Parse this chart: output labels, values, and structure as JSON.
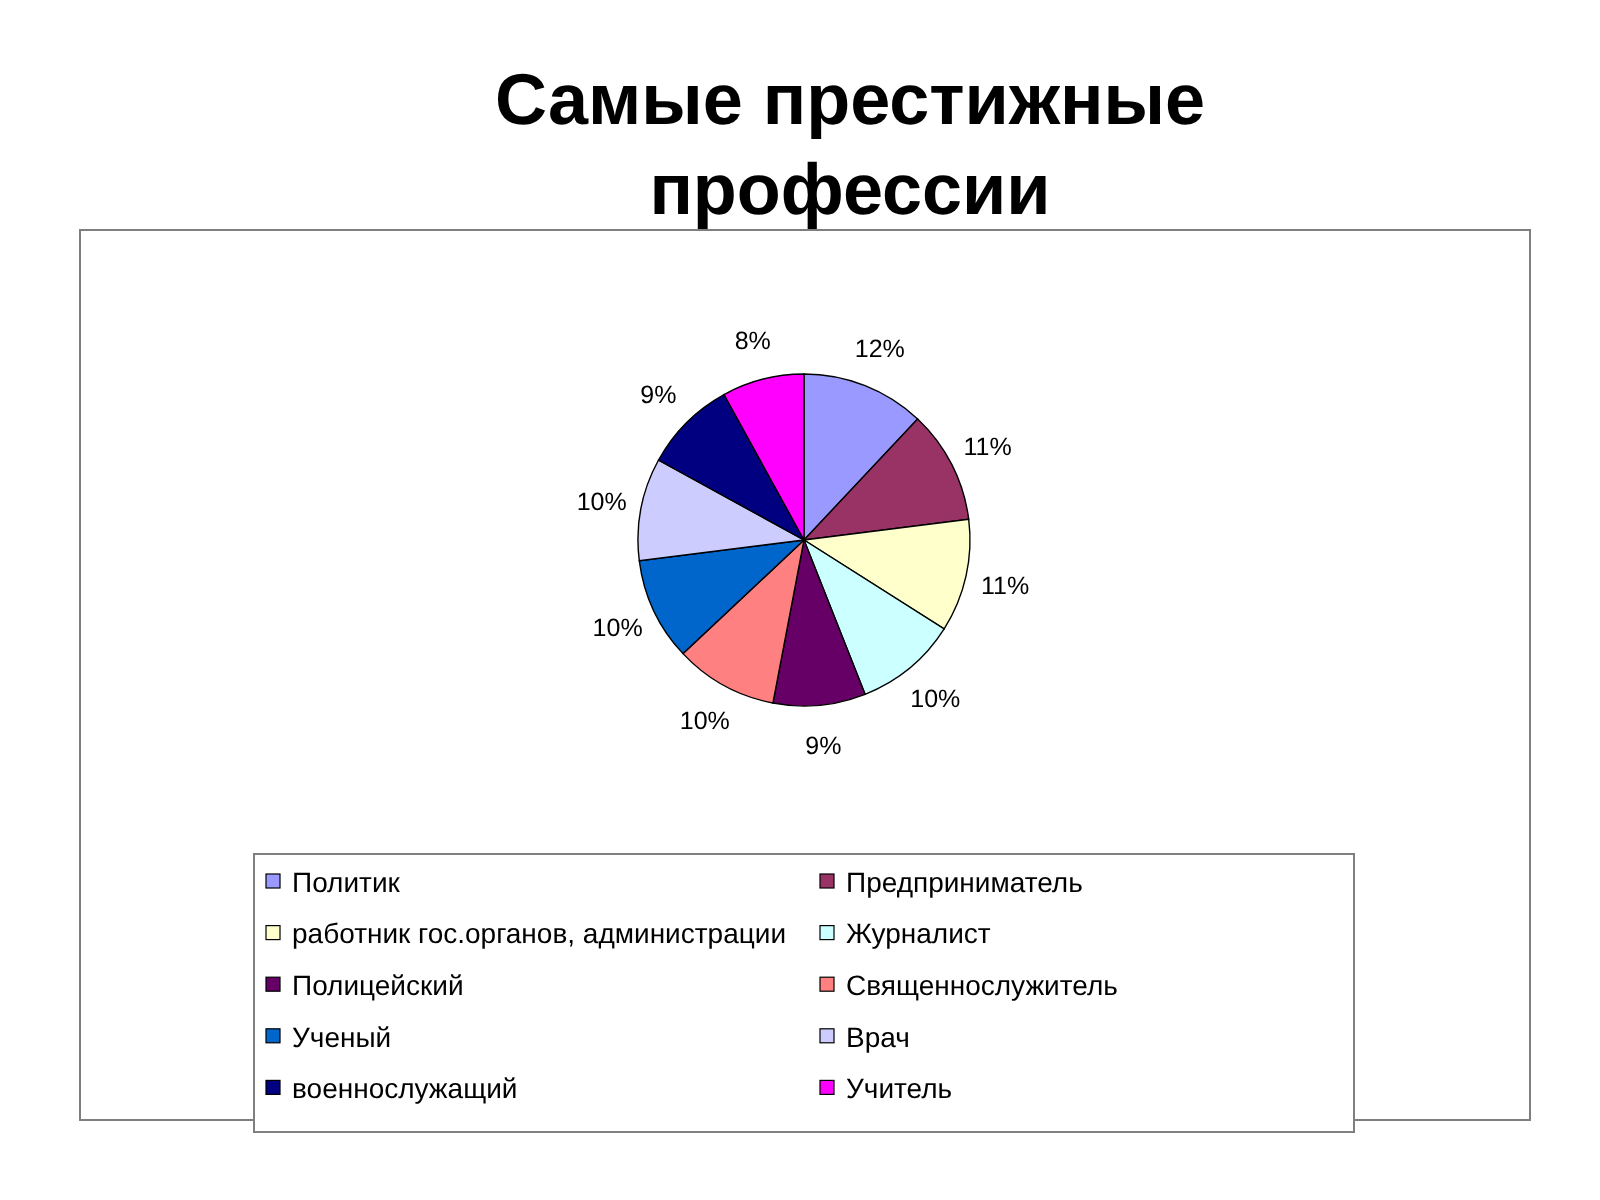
{
  "chart_data": {
    "type": "pie",
    "title": "Самые престижные профессии",
    "categories": [
      "Политик",
      "Предприниматель",
      "работник гос.органов, администрации",
      "Журналист",
      "Полицейский",
      "Священнослужитель",
      "Ученый",
      "Врач",
      "военнослужащий",
      "Учитель"
    ],
    "values": [
      12,
      11,
      11,
      10,
      9,
      10,
      10,
      10,
      9,
      8
    ],
    "colors": [
      "#9999ff",
      "#993366",
      "#ffffcc",
      "#ccffff",
      "#660066",
      "#ff8080",
      "#0066cc",
      "#ccccff",
      "#000080",
      "#ff00ff"
    ],
    "value_labels": [
      "12%",
      "11%",
      "11%",
      "10%",
      "9%",
      "10%",
      "10%",
      "10%",
      "9%",
      "8%"
    ],
    "legend": "bottom"
  }
}
